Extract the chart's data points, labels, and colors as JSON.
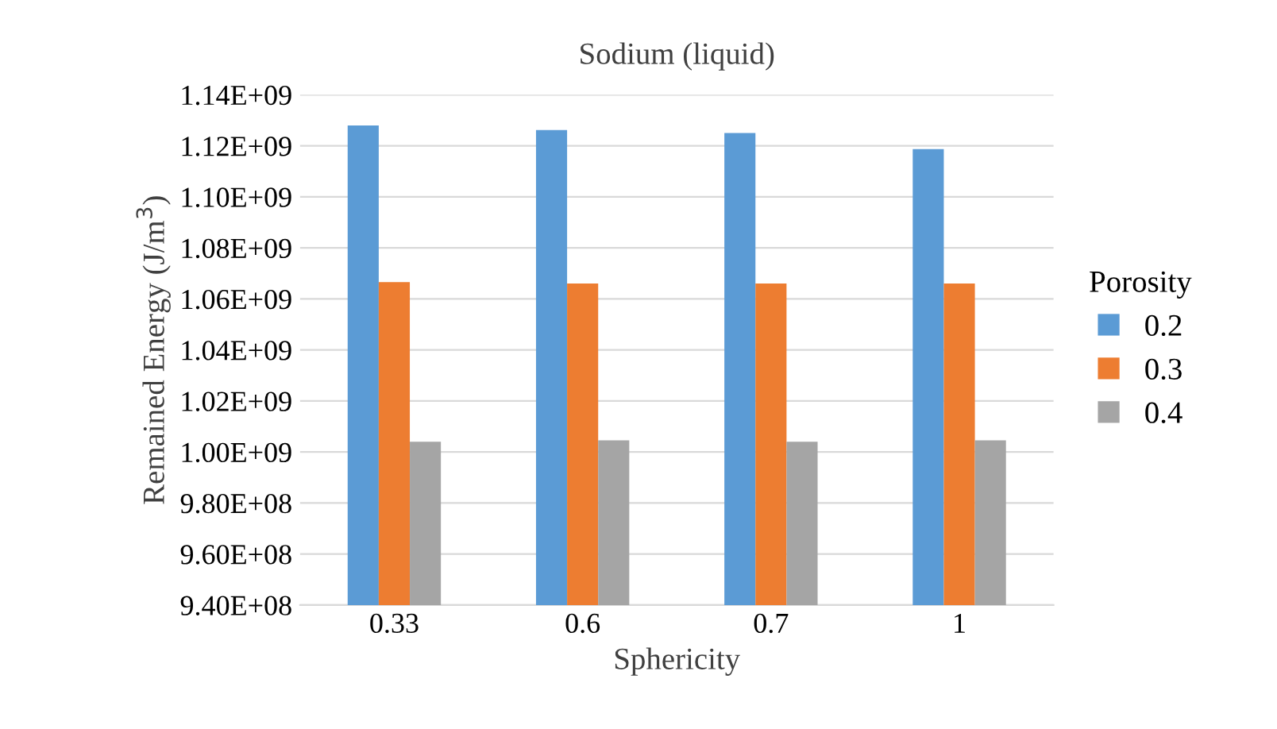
{
  "chart_data": {
    "type": "bar",
    "title": "Sodium (liquid)",
    "xlabel": "Sphericity",
    "ylabel": "Remained Energy (J/m$^{3}$)",
    "legend_title": "Porosity",
    "categories": [
      "0.33",
      "0.6",
      "0.7",
      "1"
    ],
    "series": [
      {
        "name": "0.2",
        "color": "#5b9bd5",
        "values": [
          1128000000,
          1126200000,
          1125000000,
          1118700000
        ]
      },
      {
        "name": "0.3",
        "color": "#ed7d31",
        "values": [
          1066600000,
          1066000000,
          1066000000,
          1066000000
        ]
      },
      {
        "name": "0.4",
        "color": "#a5a5a5",
        "values": [
          1004000000,
          1004600000,
          1004000000,
          1004600000
        ]
      }
    ],
    "ylim": [
      940000000,
      1140000000
    ],
    "yticks": [
      {
        "value": 940000000,
        "label": "9.40E+08"
      },
      {
        "value": 960000000,
        "label": "9.60E+08"
      },
      {
        "value": 980000000,
        "label": "9.80E+08"
      },
      {
        "value": 1000000000,
        "label": "1.00E+09"
      },
      {
        "value": 1020000000,
        "label": "1.02E+09"
      },
      {
        "value": 1040000000,
        "label": "1.04E+09"
      },
      {
        "value": 1060000000,
        "label": "1.06E+09"
      },
      {
        "value": 1080000000,
        "label": "1.08E+09"
      },
      {
        "value": 1100000000,
        "label": "1.10E+09"
      },
      {
        "value": 1120000000,
        "label": "1.12E+09"
      },
      {
        "value": 1140000000,
        "label": "1.14E+09"
      }
    ],
    "grid": "y",
    "legend": "right"
  }
}
